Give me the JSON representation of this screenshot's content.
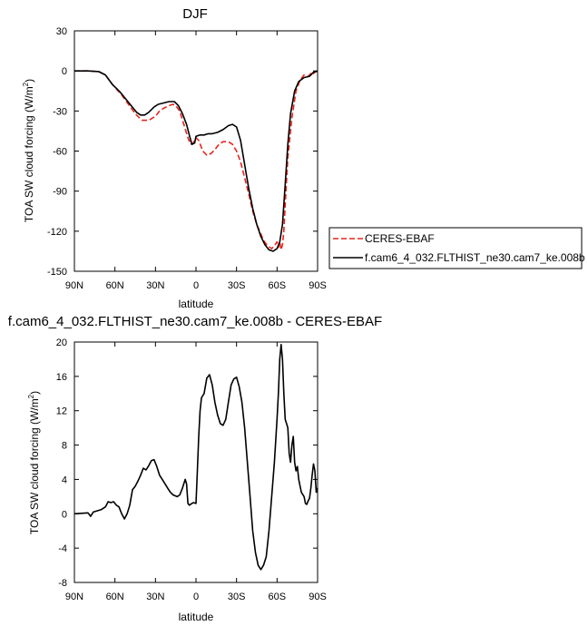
{
  "chart_data": [
    {
      "type": "line",
      "title": "DJF",
      "xlabel": "latitude",
      "ylabel": "TOA SW cloud forcing (W/m",
      "ylabel_sup": "2",
      "ylabel_close": ")",
      "xlim": [
        90,
        -90
      ],
      "ylim": [
        -150,
        30
      ],
      "xticks": [
        {
          "v": 90,
          "label": "90N"
        },
        {
          "v": 60,
          "label": "60N"
        },
        {
          "v": 30,
          "label": "30N"
        },
        {
          "v": 0,
          "label": "0"
        },
        {
          "v": -30,
          "label": "30S"
        },
        {
          "v": -60,
          "label": "60S"
        },
        {
          "v": -90,
          "label": "90S"
        }
      ],
      "yticks": [
        {
          "v": 30,
          "label": "30"
        },
        {
          "v": 0,
          "label": "0"
        },
        {
          "v": -30,
          "label": "-30"
        },
        {
          "v": -60,
          "label": "-60"
        },
        {
          "v": -90,
          "label": "-90"
        },
        {
          "v": -120,
          "label": "-120"
        },
        {
          "v": -150,
          "label": "-150"
        }
      ],
      "grid": false,
      "legend_position": "right",
      "series": [
        {
          "name": "CERES-EBAF",
          "color": "#e8241c",
          "dash": true,
          "points": [
            [
              90,
              0
            ],
            [
              80,
              0
            ],
            [
              72,
              -0.5
            ],
            [
              67,
              -3
            ],
            [
              62,
              -10
            ],
            [
              55,
              -18
            ],
            [
              50,
              -25
            ],
            [
              45,
              -32
            ],
            [
              40,
              -37
            ],
            [
              35,
              -37
            ],
            [
              30,
              -34
            ],
            [
              27,
              -30
            ],
            [
              24,
              -28
            ],
            [
              20,
              -26
            ],
            [
              17,
              -25
            ],
            [
              15,
              -26
            ],
            [
              12,
              -30
            ],
            [
              9,
              -40
            ],
            [
              6,
              -50
            ],
            [
              4,
              -55
            ],
            [
              2,
              -54
            ],
            [
              0,
              -50
            ],
            [
              -2,
              -52
            ],
            [
              -5,
              -60
            ],
            [
              -8,
              -63
            ],
            [
              -11,
              -62
            ],
            [
              -14,
              -59
            ],
            [
              -17,
              -55
            ],
            [
              -20,
              -53
            ],
            [
              -24,
              -53
            ],
            [
              -27,
              -55
            ],
            [
              -30,
              -60
            ],
            [
              -33,
              -68
            ],
            [
              -36,
              -80
            ],
            [
              -39,
              -92
            ],
            [
              -42,
              -105
            ],
            [
              -45,
              -115
            ],
            [
              -48,
              -122
            ],
            [
              -50,
              -127
            ],
            [
              -53,
              -131
            ],
            [
              -56,
              -133
            ],
            [
              -58,
              -131
            ],
            [
              -60,
              -128
            ],
            [
              -61,
              -132
            ],
            [
              -62,
              -128
            ],
            [
              -63,
              -134
            ],
            [
              -64,
              -130
            ],
            [
              -65,
              -120
            ],
            [
              -66,
              -100
            ],
            [
              -68,
              -65
            ],
            [
              -71,
              -35
            ],
            [
              -74,
              -15
            ],
            [
              -77,
              -7
            ],
            [
              -80,
              -3
            ],
            [
              -83,
              -4
            ],
            [
              -85,
              -2
            ],
            [
              -86,
              -3
            ],
            [
              -88,
              -1
            ],
            [
              -90,
              0
            ]
          ]
        },
        {
          "name": "f.cam6_4_032.FLTHIST_ne30.cam7_ke.008b",
          "color": "#000000",
          "dash": false,
          "points": [
            [
              90,
              0
            ],
            [
              80,
              0
            ],
            [
              72,
              -0.5
            ],
            [
              67,
              -3
            ],
            [
              62,
              -10
            ],
            [
              56,
              -16
            ],
            [
              52,
              -21
            ],
            [
              48,
              -26
            ],
            [
              44,
              -31
            ],
            [
              41,
              -33
            ],
            [
              38,
              -33
            ],
            [
              35,
              -31
            ],
            [
              31,
              -27
            ],
            [
              28,
              -25
            ],
            [
              24,
              -24
            ],
            [
              20,
              -23
            ],
            [
              16,
              -23
            ],
            [
              13,
              -26
            ],
            [
              10,
              -32
            ],
            [
              7,
              -40
            ],
            [
              5,
              -48
            ],
            [
              3,
              -55
            ],
            [
              1,
              -54
            ],
            [
              0,
              -49
            ],
            [
              -3,
              -48
            ],
            [
              -6,
              -48
            ],
            [
              -9,
              -47
            ],
            [
              -12,
              -47
            ],
            [
              -16,
              -46
            ],
            [
              -20,
              -44
            ],
            [
              -24,
              -41
            ],
            [
              -27,
              -40
            ],
            [
              -30,
              -42
            ],
            [
              -33,
              -52
            ],
            [
              -36,
              -70
            ],
            [
              -39,
              -88
            ],
            [
              -42,
              -103
            ],
            [
              -45,
              -115
            ],
            [
              -48,
              -124
            ],
            [
              -51,
              -130
            ],
            [
              -54,
              -134
            ],
            [
              -57,
              -135
            ],
            [
              -60,
              -133
            ],
            [
              -62,
              -128
            ],
            [
              -64,
              -115
            ],
            [
              -66,
              -85
            ],
            [
              -68,
              -55
            ],
            [
              -70,
              -32
            ],
            [
              -73,
              -15
            ],
            [
              -76,
              -8
            ],
            [
              -80,
              -5
            ],
            [
              -84,
              -4
            ],
            [
              -87,
              -1
            ],
            [
              -90,
              0
            ]
          ]
        }
      ]
    },
    {
      "type": "line",
      "title": "f.cam6_4_032.FLTHIST_ne30.cam7_ke.008b - CERES-EBAF",
      "xlabel": "latitude",
      "ylabel": "TOA SW cloud forcing (W/m",
      "ylabel_sup": "2",
      "ylabel_close": ")",
      "xlim": [
        90,
        -90
      ],
      "ylim": [
        -8,
        20
      ],
      "xticks": [
        {
          "v": 90,
          "label": "90N"
        },
        {
          "v": 60,
          "label": "60N"
        },
        {
          "v": 30,
          "label": "30N"
        },
        {
          "v": 0,
          "label": "0"
        },
        {
          "v": -30,
          "label": "30S"
        },
        {
          "v": -60,
          "label": "60S"
        },
        {
          "v": -90,
          "label": "90S"
        }
      ],
      "yticks": [
        {
          "v": 20,
          "label": "20"
        },
        {
          "v": 16,
          "label": "16"
        },
        {
          "v": 12,
          "label": "12"
        },
        {
          "v": 8,
          "label": "8"
        },
        {
          "v": 4,
          "label": "4"
        },
        {
          "v": 0,
          "label": "0"
        },
        {
          "v": -4,
          "label": "-4"
        },
        {
          "v": -8,
          "label": "-8"
        }
      ],
      "grid": false,
      "series": [
        {
          "color": "#000000",
          "dash": false,
          "points": [
            [
              90,
              0
            ],
            [
              80,
              0.1
            ],
            [
              78,
              -0.3
            ],
            [
              76,
              0.2
            ],
            [
              70,
              0.5
            ],
            [
              67,
              0.8
            ],
            [
              65,
              1.4
            ],
            [
              63,
              1.3
            ],
            [
              61,
              1.4
            ],
            [
              59,
              1
            ],
            [
              57,
              0.8
            ],
            [
              55,
              0
            ],
            [
              53,
              -0.6
            ],
            [
              51,
              0
            ],
            [
              49,
              1
            ],
            [
              47,
              2.8
            ],
            [
              45,
              3.2
            ],
            [
              43,
              3.8
            ],
            [
              41,
              4.5
            ],
            [
              39,
              5.3
            ],
            [
              37,
              5.1
            ],
            [
              35,
              5.6
            ],
            [
              33,
              6.2
            ],
            [
              31,
              6.3
            ],
            [
              29,
              5.5
            ],
            [
              27,
              4.5
            ],
            [
              25,
              4
            ],
            [
              23,
              3.5
            ],
            [
              21,
              3
            ],
            [
              19,
              2.5
            ],
            [
              17,
              2.2
            ],
            [
              14,
              2
            ],
            [
              12,
              2.2
            ],
            [
              10,
              3
            ],
            [
              8,
              4
            ],
            [
              7,
              3.5
            ],
            [
              6,
              1.2
            ],
            [
              5,
              1
            ],
            [
              3,
              1.2
            ],
            [
              2,
              1.3
            ],
            [
              0,
              1.2
            ],
            [
              -1,
              5
            ],
            [
              -2,
              9
            ],
            [
              -3,
              12
            ],
            [
              -4,
              13.5
            ],
            [
              -6,
              14
            ],
            [
              -8,
              15.8
            ],
            [
              -10,
              16.2
            ],
            [
              -12,
              15
            ],
            [
              -14,
              13
            ],
            [
              -16,
              11.5
            ],
            [
              -18,
              10.5
            ],
            [
              -20,
              10.3
            ],
            [
              -22,
              11
            ],
            [
              -24,
              13
            ],
            [
              -26,
              15
            ],
            [
              -28,
              15.7
            ],
            [
              -30,
              15.9
            ],
            [
              -32,
              14.8
            ],
            [
              -34,
              13
            ],
            [
              -36,
              10
            ],
            [
              -38,
              6
            ],
            [
              -40,
              2
            ],
            [
              -42,
              -2
            ],
            [
              -44,
              -4.5
            ],
            [
              -46,
              -6
            ],
            [
              -48,
              -6.5
            ],
            [
              -50,
              -6
            ],
            [
              -52,
              -5
            ],
            [
              -54,
              -2
            ],
            [
              -56,
              2
            ],
            [
              -58,
              6
            ],
            [
              -60,
              11
            ],
            [
              -61,
              14
            ],
            [
              -62,
              18
            ],
            [
              -63,
              19.7
            ],
            [
              -64,
              18
            ],
            [
              -65,
              14
            ],
            [
              -66,
              11
            ],
            [
              -67,
              10.5
            ],
            [
              -68,
              10
            ],
            [
              -69,
              7
            ],
            [
              -70,
              6
            ],
            [
              -71,
              8
            ],
            [
              -72,
              9
            ],
            [
              -73,
              6
            ],
            [
              -74,
              5
            ],
            [
              -75,
              5.5
            ],
            [
              -76,
              4
            ],
            [
              -78,
              2.5
            ],
            [
              -80,
              2
            ],
            [
              -81,
              1.2
            ],
            [
              -82,
              1.1
            ],
            [
              -83,
              1.5
            ],
            [
              -84,
              1.8
            ],
            [
              -85,
              3
            ],
            [
              -86,
              4.5
            ],
            [
              -87,
              5.8
            ],
            [
              -88,
              5
            ],
            [
              -89,
              2.5
            ],
            [
              -90,
              3
            ]
          ]
        }
      ]
    }
  ]
}
